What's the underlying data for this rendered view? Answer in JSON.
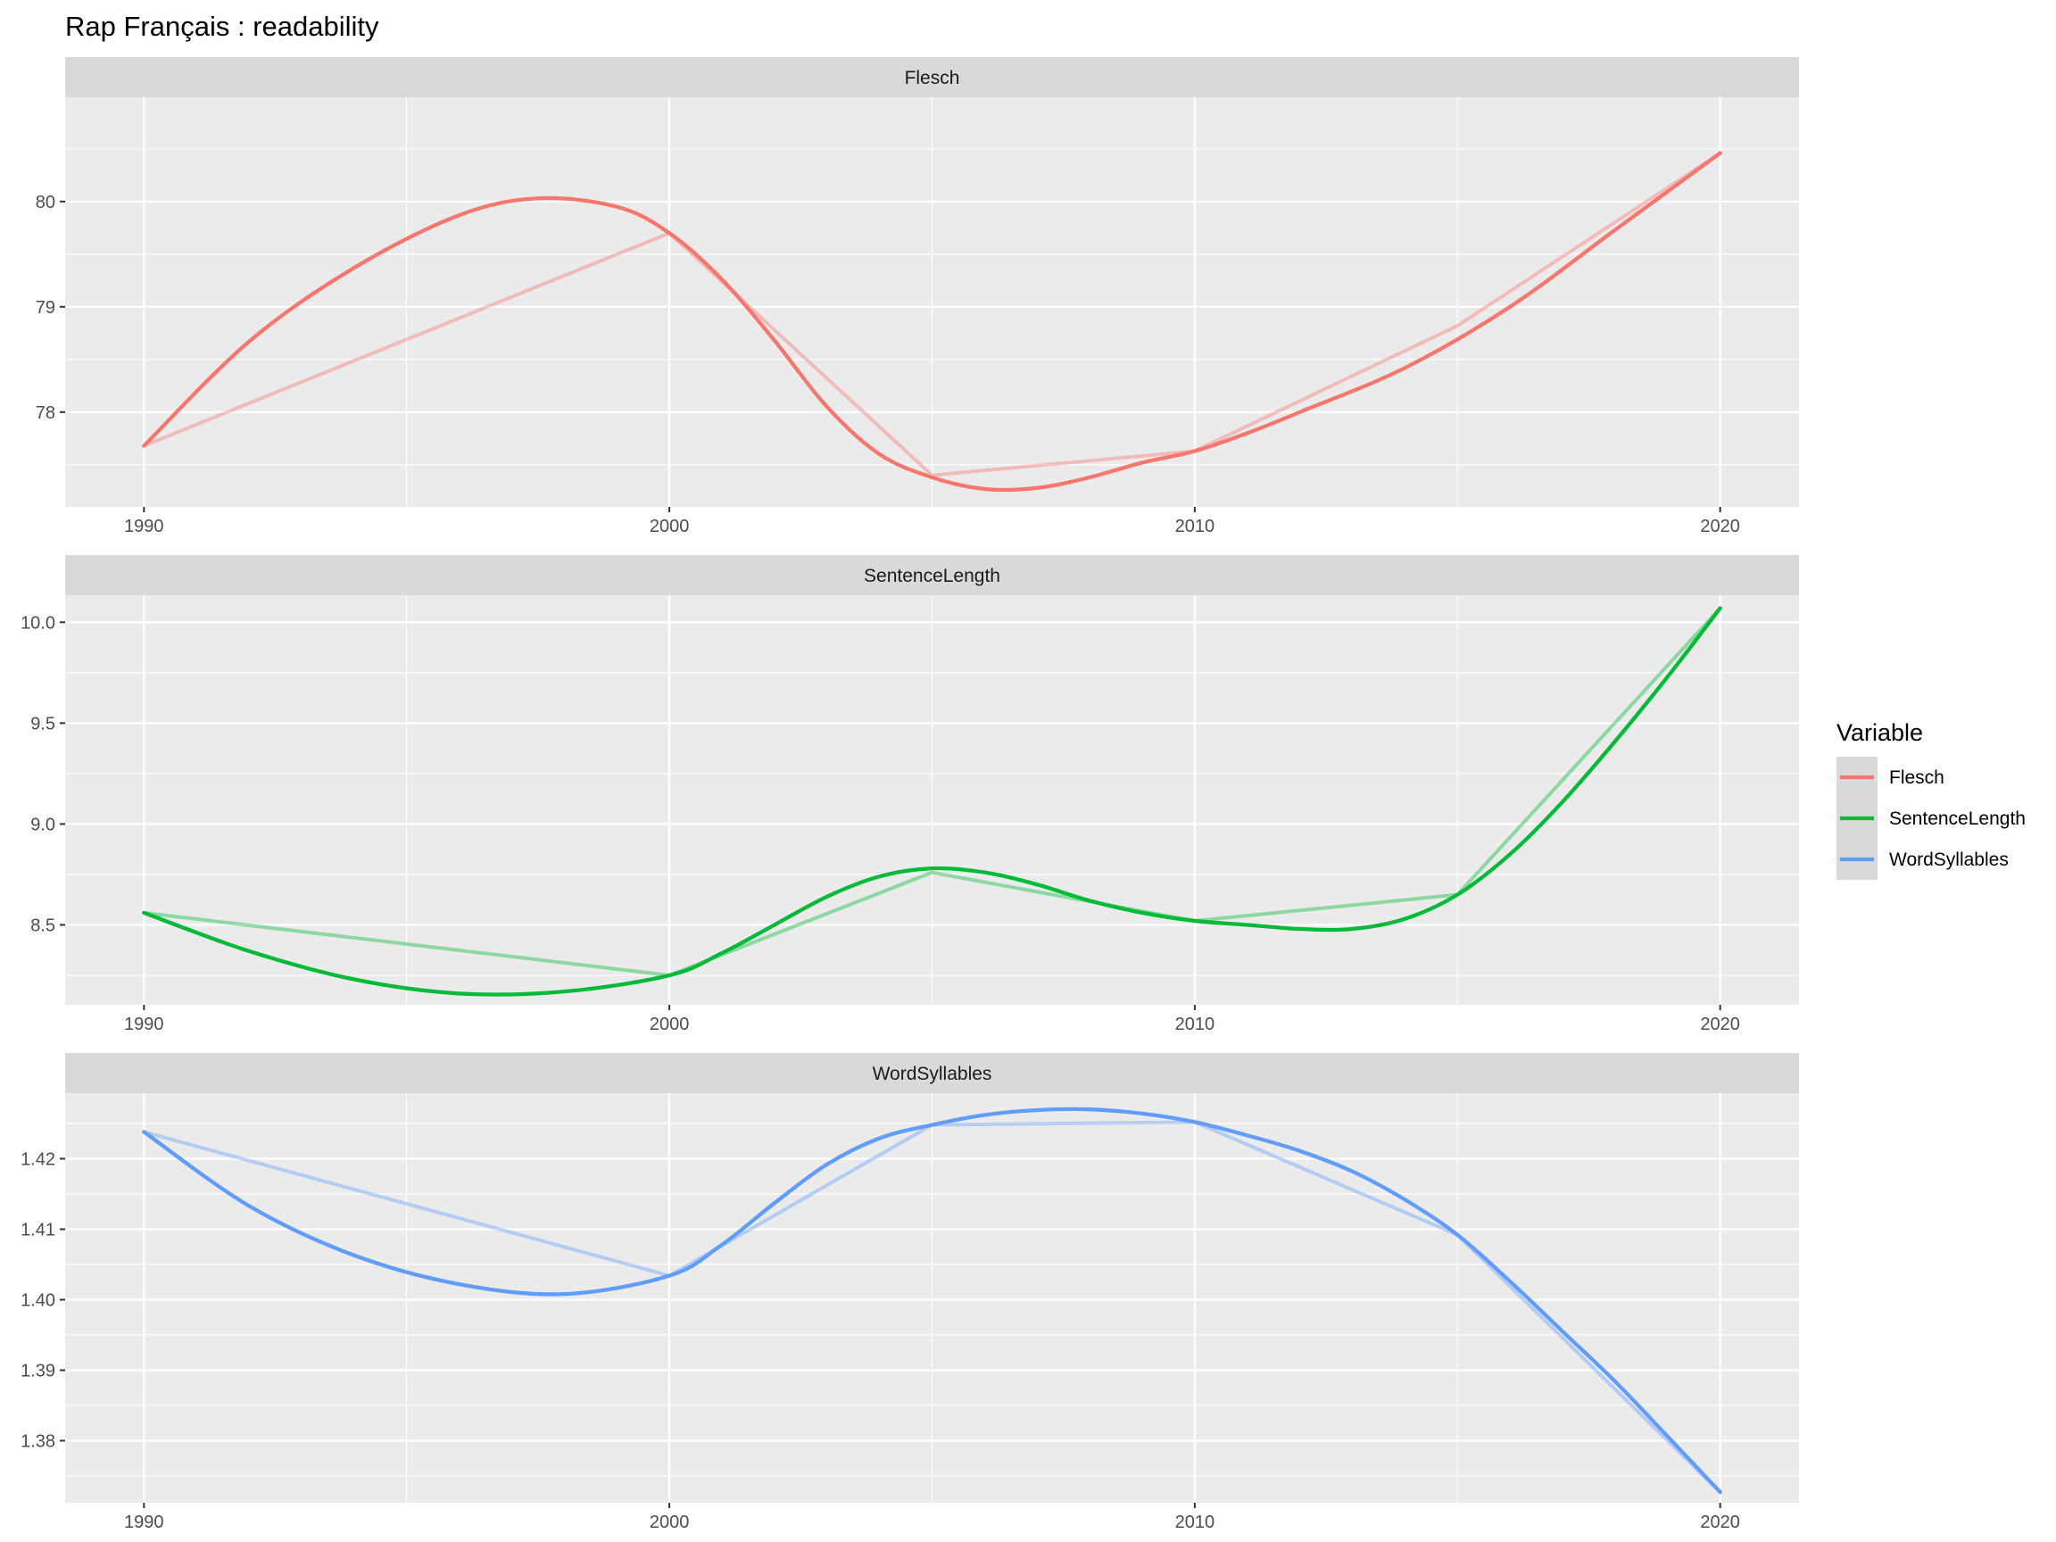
{
  "chart_data": {
    "type": "line",
    "title": "Rap Français :  readability",
    "legend": {
      "title": "Variable",
      "entries": [
        "Flesch",
        "SentenceLength",
        "WordSyllables"
      ],
      "colors": [
        "#F8766D",
        "#00BA38",
        "#619CFF"
      ],
      "placement": "right"
    },
    "panels": [
      {
        "name": "Flesch",
        "color": "#F8766D",
        "xlim": [
          1988.5,
          2021.5
        ],
        "ylim": [
          77.1,
          80.99
        ],
        "x_ticks": [
          1990,
          2000,
          2010,
          2020
        ],
        "x_tick_labels": [
          "1990",
          "2000",
          "2010",
          "2020"
        ],
        "y_ticks": [
          78,
          79,
          80
        ],
        "y_tick_labels": [
          "78",
          "79",
          "80"
        ],
        "y_minor": [
          77.5,
          78.5,
          79.5,
          80.5
        ],
        "raw": {
          "x": [
            1990,
            2000,
            2005,
            2010,
            2015,
            2020
          ],
          "y": [
            77.68,
            79.7,
            77.4,
            77.63,
            78.82,
            80.46
          ]
        },
        "smooth": {
          "x": [
            1990,
            1992,
            1994,
            1996,
            1997.5,
            1999,
            2000,
            2001,
            2002,
            2003,
            2004,
            2005,
            2006,
            2007,
            2008,
            2009,
            2010,
            2011,
            2012,
            2014,
            2016,
            2018,
            2020
          ],
          "y": [
            77.68,
            78.67,
            79.37,
            79.87,
            80.03,
            79.95,
            79.7,
            79.26,
            78.68,
            78.05,
            77.6,
            77.38,
            77.27,
            77.28,
            77.38,
            77.52,
            77.63,
            77.8,
            78.0,
            78.42,
            79.0,
            79.73,
            80.46
          ]
        }
      },
      {
        "name": "SentenceLength",
        "color": "#00BA38",
        "xlim": [
          1988.5,
          2021.5
        ],
        "ylim": [
          8.104,
          10.134
        ],
        "x_ticks": [
          1990,
          2000,
          2010,
          2020
        ],
        "x_tick_labels": [
          "1990",
          "2000",
          "2010",
          "2020"
        ],
        "y_ticks": [
          8.5,
          9.0,
          9.5,
          10.0
        ],
        "y_tick_labels": [
          "8.5",
          "9.0",
          "9.5",
          "10.0"
        ],
        "y_minor": [
          8.25,
          8.75,
          9.25,
          9.75
        ],
        "raw": {
          "x": [
            1990,
            2000,
            2005,
            2010,
            2015,
            2020
          ],
          "y": [
            8.56,
            8.25,
            8.76,
            8.52,
            8.65,
            10.07
          ]
        },
        "smooth": {
          "x": [
            1990,
            1992,
            1994,
            1996,
            1998,
            2000,
            2001,
            2002,
            2003,
            2004,
            2005,
            2006,
            2007,
            2008,
            2009,
            2010,
            2011,
            2012,
            2013,
            2014,
            2015,
            2016,
            2017,
            2018,
            2019,
            2020
          ],
          "y": [
            8.56,
            8.37,
            8.23,
            8.16,
            8.17,
            8.25,
            8.36,
            8.5,
            8.64,
            8.74,
            8.78,
            8.76,
            8.7,
            8.62,
            8.56,
            8.52,
            8.5,
            8.48,
            8.48,
            8.53,
            8.65,
            8.85,
            9.11,
            9.41,
            9.73,
            10.07
          ]
        }
      },
      {
        "name": "WordSyllables",
        "color": "#619CFF",
        "xlim": [
          1988.5,
          2021.5
        ],
        "ylim": [
          1.3712,
          1.4293
        ],
        "x_ticks": [
          1990,
          2000,
          2010,
          2020
        ],
        "x_tick_labels": [
          "1990",
          "2000",
          "2010",
          "2020"
        ],
        "y_ticks": [
          1.38,
          1.39,
          1.4,
          1.41,
          1.42
        ],
        "y_tick_labels": [
          "1.38",
          "1.39",
          "1.40",
          "1.41",
          "1.42"
        ],
        "y_minor": [
          1.375,
          1.385,
          1.395,
          1.405,
          1.415,
          1.425
        ],
        "raw": {
          "x": [
            1990,
            2000,
            2005,
            2010,
            2015,
            2020
          ],
          "y": [
            1.4238,
            1.4034,
            1.4248,
            1.4252,
            1.4092,
            1.3727
          ]
        },
        "smooth": {
          "x": [
            1990,
            1992,
            1994,
            1996,
            1998,
            2000,
            2001,
            2002,
            2003,
            2004,
            2005,
            2006,
            2007,
            2008,
            2009,
            2010,
            2011,
            2012,
            2013,
            2014,
            2015,
            2016,
            2017,
            2018,
            2019,
            2020
          ],
          "y": [
            1.4238,
            1.4133,
            1.4063,
            1.4022,
            1.4008,
            1.4034,
            1.4078,
            1.4137,
            1.4192,
            1.4229,
            1.4248,
            1.4262,
            1.4269,
            1.427,
            1.4264,
            1.4252,
            1.4233,
            1.4211,
            1.4182,
            1.4142,
            1.4092,
            1.4026,
            1.3955,
            1.3884,
            1.3806,
            1.3727
          ]
        }
      }
    ]
  }
}
